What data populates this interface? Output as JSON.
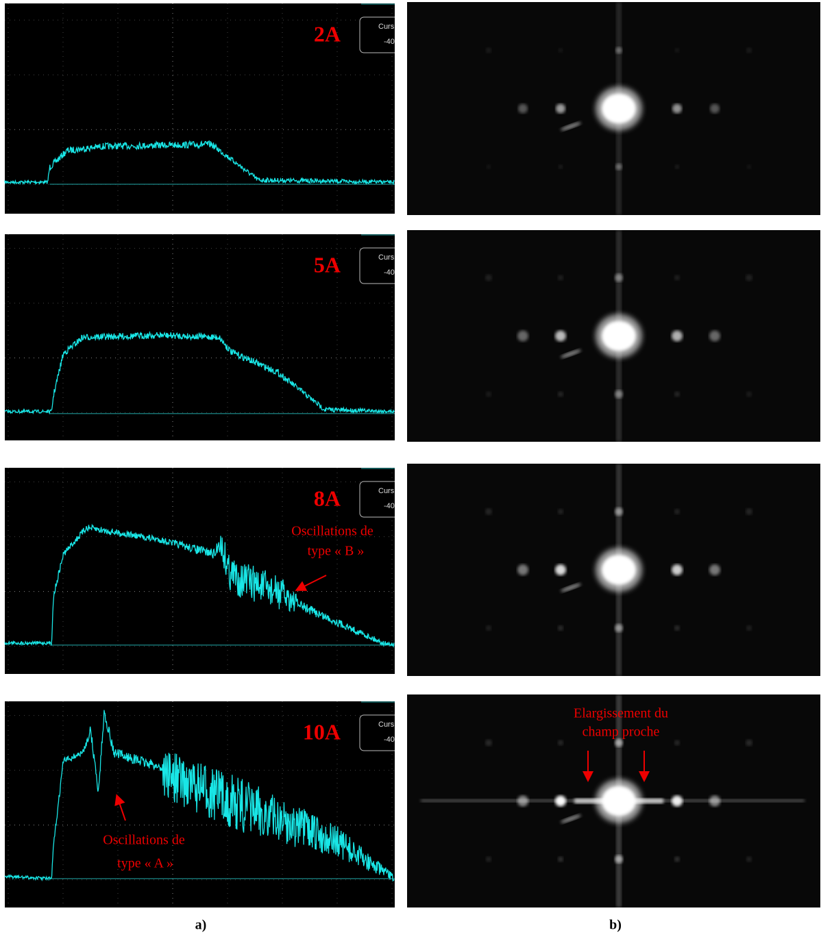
{
  "oscilloscope": [
    {
      "label": "2A",
      "cursor_title": "Curs",
      "cursor_value": "-40"
    },
    {
      "label": "5A",
      "cursor_title": "Curs",
      "cursor_value": "-40"
    },
    {
      "label": "8A",
      "cursor_title": "Curs",
      "cursor_value": "-40",
      "annotation": [
        "Oscillations de",
        "type « B »"
      ]
    },
    {
      "label": "10A",
      "cursor_title": "Curs",
      "cursor_value": "-40",
      "annotation": [
        "Oscillations de",
        "type « A »"
      ]
    }
  ],
  "far_field": [
    {},
    {},
    {},
    {
      "annotation": [
        "Elargissement du",
        "champ proche"
      ]
    }
  ],
  "captions": [
    "a)",
    "b)"
  ]
}
